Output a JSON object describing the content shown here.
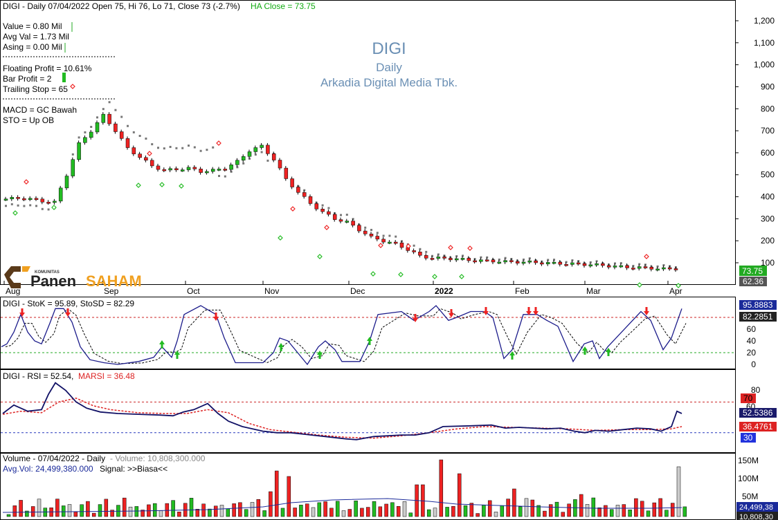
{
  "colors": {
    "up": "#22bb22",
    "down": "#ee2222",
    "ha_label": "#11aa11",
    "title_blue": "#6a8fb4",
    "stoch_line": "#1a1a8a",
    "rsi_line": "#111166",
    "marsi": "#dd2222",
    "red_dash": "#cc2222",
    "green_dash": "#22aa22",
    "blue_dash": "#2233bb",
    "psar": "#777777",
    "vol_avg": "#1a2a9a"
  },
  "header": {
    "info": "DIGI - Daily 07/04/2022 Open 75, Hi 76, Lo 71, Close 73 (-2.7%)",
    "ha_close": "HA Close = 73.75"
  },
  "title": {
    "ticker": "DIGI",
    "period": "Daily",
    "company": "Arkadia Digital Media Tbk."
  },
  "stats": {
    "value": "Value = 0.80 Mil",
    "avg_val": "Avg Val = 1.73 Mil",
    "asing": "Asing = 0.00 Mil",
    "floating_profit": "Floating Profit = 10.61%",
    "bar_profit": "Bar Profit = 2",
    "trailing_stop": "Trailing Stop = 65",
    "macd": "MACD =  GC Bawah",
    "sto": "STO  =  Up OB"
  },
  "logo": {
    "komunitas": "KOMUNITAS",
    "panen": "Panen",
    "saham": "SAHAM"
  },
  "price_axis": {
    "ticks": [
      "1,200",
      "1,100",
      "1,000",
      "900",
      "800",
      "700",
      "600",
      "500",
      "400",
      "300",
      "200",
      "100"
    ],
    "last_label": "73.75",
    "stop_label": "62.36"
  },
  "months": [
    "Aug",
    "Sep",
    "Oct",
    "Nov",
    "Dec",
    "2022",
    "Feb",
    "Mar",
    "Apr"
  ],
  "stoch": {
    "label": "DIGI - StoK = 95.89, StoSD = 82.29",
    "ticks": [
      "80",
      "60",
      "40",
      "20",
      "0"
    ],
    "k_label": "95.8883",
    "d_label": "82.2851"
  },
  "rsi": {
    "label_main": "DIGI - RSI = 52.54,",
    "label_ma": "MARSI = 36.48",
    "ticks": [
      "80",
      "60"
    ],
    "level70": "70",
    "level30": "30",
    "rsi_label": "52.5386",
    "marsi_label": "36.4761"
  },
  "volume": {
    "label": "Volume - 07/04/2022 - Daily",
    "label_vol": " - Volume: 10,808,300.000",
    "avg_label": "Avg.Vol: 24,499,380.000",
    "signal_label": "Signal: >>Biasa<<",
    "ticks": [
      "150M",
      "100M",
      "50M"
    ],
    "avg_axis": "24,499,38",
    "vol_axis": "10,808,30"
  },
  "chart_data": {
    "type": "candlestick",
    "title": "DIGI",
    "subtitle": "Arkadia Digital Media Tbk.",
    "period": "Daily",
    "last_bar": {
      "date": "07/04/2022",
      "open": 75,
      "high": 76,
      "low": 71,
      "close": 73,
      "change_pct": -2.7,
      "ha_close": 73.75
    },
    "y_axis": {
      "min": 50,
      "max": 1250,
      "ticks": [
        100,
        200,
        300,
        400,
        500,
        600,
        700,
        800,
        900,
        1000,
        1100,
        1200
      ]
    },
    "month_labels": [
      "Aug",
      "Sep",
      "Oct",
      "Nov",
      "Dec",
      "2022",
      "Feb",
      "Mar",
      "Apr"
    ],
    "ha_close_approx": [
      [
        0,
        390
      ],
      [
        3,
        395
      ],
      [
        6,
        380
      ],
      [
        8,
        375
      ],
      [
        10,
        500
      ],
      [
        12,
        640
      ],
      [
        14,
        700
      ],
      [
        16,
        770
      ],
      [
        18,
        700
      ],
      [
        20,
        620
      ],
      [
        22,
        580
      ],
      [
        24,
        540
      ],
      [
        26,
        520
      ],
      [
        28,
        525
      ],
      [
        30,
        530
      ],
      [
        32,
        515
      ],
      [
        34,
        520
      ],
      [
        36,
        530
      ],
      [
        38,
        560
      ],
      [
        40,
        610
      ],
      [
        42,
        630
      ],
      [
        44,
        570
      ],
      [
        46,
        480
      ],
      [
        48,
        420
      ],
      [
        50,
        370
      ],
      [
        52,
        330
      ],
      [
        54,
        300
      ],
      [
        56,
        285
      ],
      [
        58,
        250
      ],
      [
        60,
        215
      ],
      [
        62,
        200
      ],
      [
        64,
        185
      ],
      [
        66,
        160
      ],
      [
        68,
        130
      ],
      [
        70,
        122
      ],
      [
        72,
        120
      ],
      [
        74,
        118
      ],
      [
        76,
        112
      ],
      [
        78,
        110
      ],
      [
        80,
        108
      ],
      [
        82,
        105
      ],
      [
        84,
        104
      ],
      [
        86,
        103
      ],
      [
        88,
        100
      ],
      [
        90,
        98
      ],
      [
        92,
        96
      ],
      [
        94,
        94
      ],
      [
        96,
        92
      ],
      [
        98,
        88
      ],
      [
        100,
        84
      ],
      [
        102,
        80
      ],
      [
        104,
        78
      ],
      [
        106,
        76
      ],
      [
        108,
        72
      ],
      [
        110,
        74
      ]
    ],
    "stochastic": {
      "stok": 95.89,
      "stosd": 82.29,
      "overbought": 80,
      "oversold": 20
    },
    "rsi": {
      "rsi": 52.54,
      "marsi": 36.48,
      "overbought": 70,
      "oversold": 30
    },
    "volume": {
      "last": 10808300,
      "avg": 24499380,
      "y_ticks": [
        "50M",
        "100M",
        "150M"
      ],
      "signal": ">>Biasa<<"
    }
  }
}
